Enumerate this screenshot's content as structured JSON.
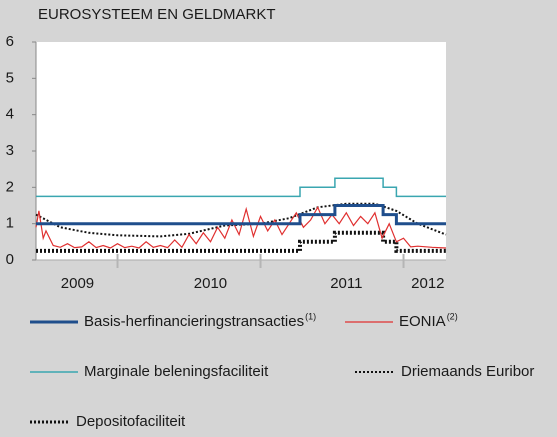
{
  "chart_data": {
    "type": "line",
    "title": "EUROSYSTEEM EN GELDMARKT",
    "xlim": [
      2009.43,
      2012.297
    ],
    "xticks": [
      2010,
      2011,
      2012
    ],
    "x_labels": [
      {
        "value": 2009.72,
        "label": "2009"
      },
      {
        "value": 2010.65,
        "label": "2010"
      },
      {
        "value": 2011.6,
        "label": "2011"
      },
      {
        "value": 2012.17,
        "label": "2012"
      }
    ],
    "ylim": [
      0,
      6
    ],
    "yticks": [
      0,
      1,
      2,
      3,
      4,
      5,
      6
    ],
    "grid": false,
    "series": [
      {
        "name": "Basis-herfinancieringstransacties",
        "note": "(1)",
        "color": "#1f4e8c",
        "width": 3,
        "dash": "none",
        "x": [
          2009.43,
          2011.276,
          2011.276,
          2011.52,
          2011.52,
          2011.857,
          2011.857,
          2011.95,
          2011.95,
          2012.297
        ],
        "values": [
          1,
          1,
          1.25,
          1.25,
          1.5,
          1.5,
          1.25,
          1.25,
          1,
          1
        ]
      },
      {
        "name": "EONIA",
        "note": "(2)",
        "color": "#e03030",
        "width": 1.2,
        "dash": "none",
        "x": [
          2009.43,
          2009.45,
          2009.48,
          2009.5,
          2009.55,
          2009.6,
          2009.65,
          2009.7,
          2009.75,
          2009.8,
          2009.85,
          2009.9,
          2009.95,
          2010.0,
          2010.05,
          2010.1,
          2010.15,
          2010.2,
          2010.25,
          2010.3,
          2010.35,
          2010.4,
          2010.45,
          2010.5,
          2010.55,
          2010.6,
          2010.65,
          2010.7,
          2010.75,
          2010.8,
          2010.85,
          2010.9,
          2010.95,
          2011.0,
          2011.05,
          2011.1,
          2011.15,
          2011.2,
          2011.25,
          2011.3,
          2011.35,
          2011.4,
          2011.45,
          2011.5,
          2011.55,
          2011.6,
          2011.65,
          2011.7,
          2011.75,
          2011.8,
          2011.85,
          2011.9,
          2011.95,
          2012.0,
          2012.05,
          2012.1,
          2012.2,
          2012.297
        ],
        "values": [
          0.9,
          1.35,
          0.6,
          0.8,
          0.4,
          0.35,
          0.45,
          0.34,
          0.36,
          0.5,
          0.34,
          0.4,
          0.33,
          0.45,
          0.34,
          0.38,
          0.33,
          0.5,
          0.35,
          0.4,
          0.34,
          0.55,
          0.35,
          0.7,
          0.45,
          0.75,
          0.5,
          0.9,
          0.6,
          1.1,
          0.7,
          1.4,
          0.65,
          1.2,
          0.8,
          1.1,
          0.7,
          1.0,
          1.3,
          0.9,
          1.1,
          1.45,
          1.0,
          1.25,
          1.0,
          1.3,
          0.95,
          1.2,
          1.0,
          1.3,
          0.6,
          1.0,
          0.5,
          0.6,
          0.36,
          0.38,
          0.35,
          0.33
        ]
      },
      {
        "name": "Marginale beleningsfaciliteit",
        "color": "#3aa6b0",
        "width": 1.5,
        "dash": "none",
        "x": [
          2009.43,
          2011.276,
          2011.276,
          2011.52,
          2011.52,
          2011.857,
          2011.857,
          2011.95,
          2011.95,
          2012.297
        ],
        "values": [
          1.75,
          1.75,
          2,
          2,
          2.25,
          2.25,
          2,
          2,
          1.75,
          1.75
        ]
      },
      {
        "name": "Driemaands Euribor",
        "color": "#111111",
        "width": 2,
        "dash": "2 2",
        "x": [
          2009.43,
          2009.6,
          2009.8,
          2010.0,
          2010.3,
          2010.5,
          2010.75,
          2011.0,
          2011.2,
          2011.4,
          2011.6,
          2011.8,
          2011.95,
          2012.1,
          2012.297
        ],
        "values": [
          1.25,
          0.9,
          0.75,
          0.68,
          0.65,
          0.72,
          0.95,
          1.0,
          1.15,
          1.45,
          1.55,
          1.55,
          1.35,
          1.0,
          0.7
        ]
      },
      {
        "name": "Depositofaciliteit",
        "color": "#111111",
        "width": 4,
        "dash": "2 2",
        "x": [
          2009.43,
          2011.276,
          2011.276,
          2011.52,
          2011.52,
          2011.857,
          2011.857,
          2011.95,
          2011.95,
          2012.297
        ],
        "values": [
          0.25,
          0.25,
          0.5,
          0.5,
          0.75,
          0.75,
          0.5,
          0.5,
          0.25,
          0.25
        ]
      }
    ]
  }
}
